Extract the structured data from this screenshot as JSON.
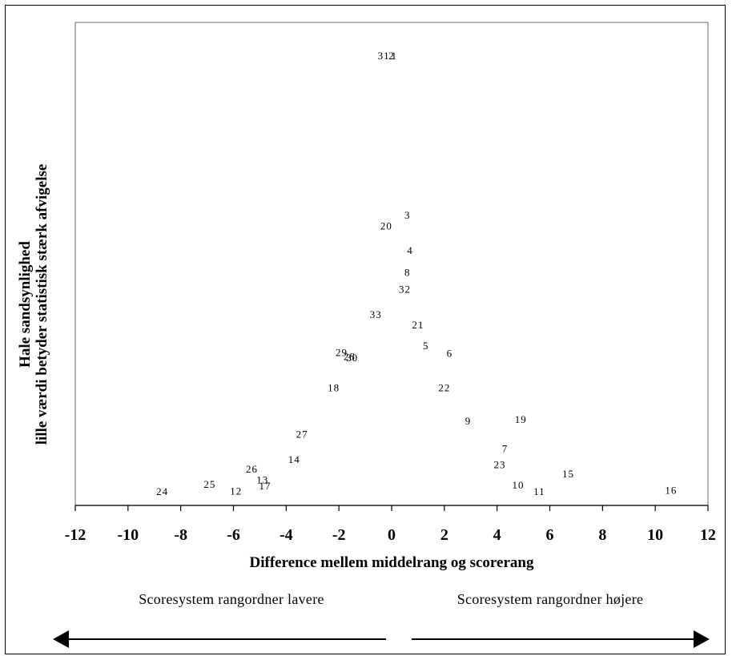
{
  "chart_data": {
    "type": "scatter",
    "xlabel": "Difference mellem middelrang og scorerang",
    "ylabel_lines": [
      "Hale sandsynlighed",
      "lille værdi betyder statistisk stærk afvigelse"
    ],
    "xlim": [
      -12,
      12
    ],
    "x_ticks": [
      -12,
      -10,
      -8,
      -6,
      -4,
      -2,
      0,
      2,
      4,
      6,
      8,
      10,
      12
    ],
    "y_axis_shown": false,
    "grid": false,
    "points": [
      {
        "label": "1",
        "x": 0.1,
        "y": 100
      },
      {
        "label": "2",
        "x": 0.0,
        "y": 100
      },
      {
        "label": "31",
        "x": -0.3,
        "y": 100
      },
      {
        "label": "3",
        "x": 0.6,
        "y": 64.0
      },
      {
        "label": "20",
        "x": -0.2,
        "y": 61.5
      },
      {
        "label": "4",
        "x": 0.7,
        "y": 56.0
      },
      {
        "label": "8",
        "x": 0.6,
        "y": 51.0
      },
      {
        "label": "32",
        "x": 0.5,
        "y": 47.2
      },
      {
        "label": "33",
        "x": -0.6,
        "y": 41.5
      },
      {
        "label": "21",
        "x": 1.0,
        "y": 39.2
      },
      {
        "label": "5",
        "x": 1.3,
        "y": 34.5
      },
      {
        "label": "6",
        "x": 2.2,
        "y": 32.8
      },
      {
        "label": "29",
        "x": -1.9,
        "y": 32.9
      },
      {
        "label": "28",
        "x": -1.6,
        "y": 32.0
      },
      {
        "label": "30",
        "x": -1.5,
        "y": 31.8
      },
      {
        "label": "18",
        "x": -2.2,
        "y": 25.0
      },
      {
        "label": "22",
        "x": 2.0,
        "y": 25.0
      },
      {
        "label": "9",
        "x": 2.9,
        "y": 17.5
      },
      {
        "label": "19",
        "x": 4.9,
        "y": 17.8
      },
      {
        "label": "27",
        "x": -3.4,
        "y": 14.5
      },
      {
        "label": "7",
        "x": 4.3,
        "y": 11.2
      },
      {
        "label": "14",
        "x": -3.7,
        "y": 8.8
      },
      {
        "label": "23",
        "x": 4.1,
        "y": 7.6
      },
      {
        "label": "26",
        "x": -5.3,
        "y": 6.6
      },
      {
        "label": "15",
        "x": 6.7,
        "y": 5.5
      },
      {
        "label": "13",
        "x": -4.9,
        "y": 4.2
      },
      {
        "label": "25",
        "x": -6.9,
        "y": 3.2
      },
      {
        "label": "10",
        "x": 4.8,
        "y": 3.0
      },
      {
        "label": "17",
        "x": -4.8,
        "y": 2.8
      },
      {
        "label": "12",
        "x": -5.9,
        "y": 1.6
      },
      {
        "label": "11",
        "x": 5.6,
        "y": 1.5
      },
      {
        "label": "24",
        "x": -8.7,
        "y": 1.5
      },
      {
        "label": "16",
        "x": 10.6,
        "y": 1.8
      }
    ]
  },
  "annotations": {
    "left_direction": "Scoresystem rangordner lavere",
    "right_direction": "Scoresystem rangordner højere"
  }
}
